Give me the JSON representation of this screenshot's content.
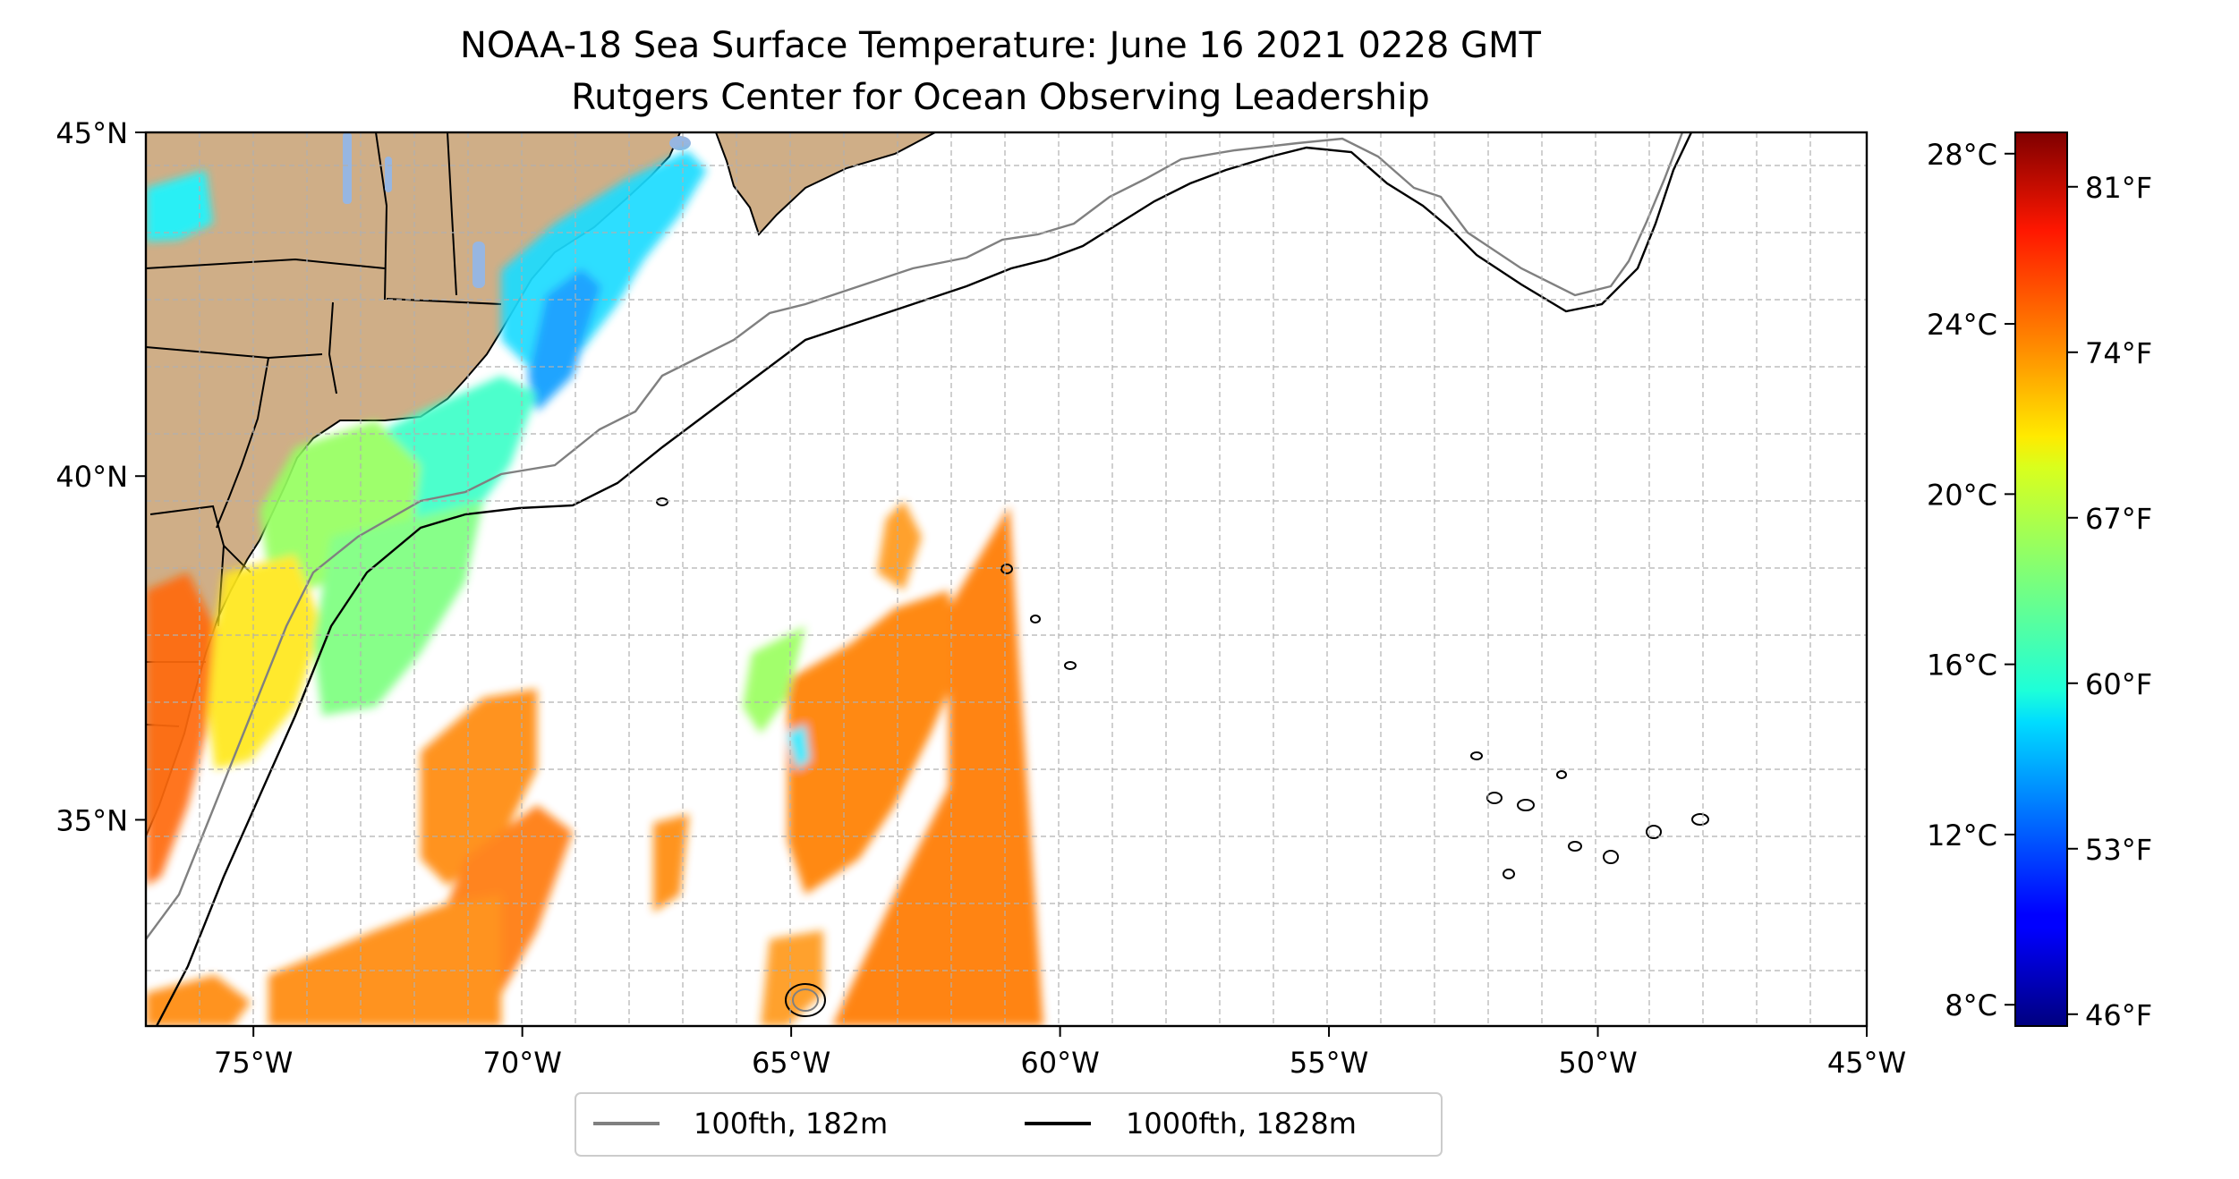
{
  "figure": {
    "title_line1": "NOAA-18 Sea Surface Temperature: June 16 2021 0228 GMT",
    "title_line2": "Rutgers Center for Ocean Observing Leadership"
  },
  "map": {
    "lon_range": [
      -77,
      -45
    ],
    "lat_range": [
      32,
      45
    ],
    "lon_ticks": [
      {
        "value": -75,
        "label": "75°W"
      },
      {
        "value": -70,
        "label": "70°W"
      },
      {
        "value": -65,
        "label": "65°W"
      },
      {
        "value": -60,
        "label": "60°W"
      },
      {
        "value": -55,
        "label": "55°W"
      },
      {
        "value": -50,
        "label": "50°W"
      },
      {
        "value": -45,
        "label": "45°W"
      }
    ],
    "lat_ticks": [
      {
        "value": 35,
        "label": "35°N"
      },
      {
        "value": 40,
        "label": "40°N"
      },
      {
        "value": 45,
        "label": "45°N"
      }
    ],
    "gridlines": true,
    "land_color": "#cfae87",
    "coastline_color": "#000000"
  },
  "colorbar": {
    "range_celsius": [
      7.5,
      28.5
    ],
    "celsius_ticks": [
      {
        "value": 8,
        "label": "8°C"
      },
      {
        "value": 12,
        "label": "12°C"
      },
      {
        "value": 16,
        "label": "16°C"
      },
      {
        "value": 20,
        "label": "20°C"
      },
      {
        "value": 24,
        "label": "24°C"
      },
      {
        "value": 28,
        "label": "28°C"
      }
    ],
    "fahrenheit_ticks": [
      {
        "value": 46,
        "label": "46°F"
      },
      {
        "value": 53,
        "label": "53°F"
      },
      {
        "value": 60,
        "label": "60°F"
      },
      {
        "value": 67,
        "label": "67°F"
      },
      {
        "value": 74,
        "label": "74°F"
      },
      {
        "value": 81,
        "label": "81°F"
      }
    ],
    "colormap": "jet"
  },
  "legend": {
    "placement": "bottom-center",
    "entries": [
      {
        "label": "100fth, 182m",
        "color": "#808080"
      },
      {
        "label": "1000fth, 1828m",
        "color": "#000000"
      }
    ]
  }
}
